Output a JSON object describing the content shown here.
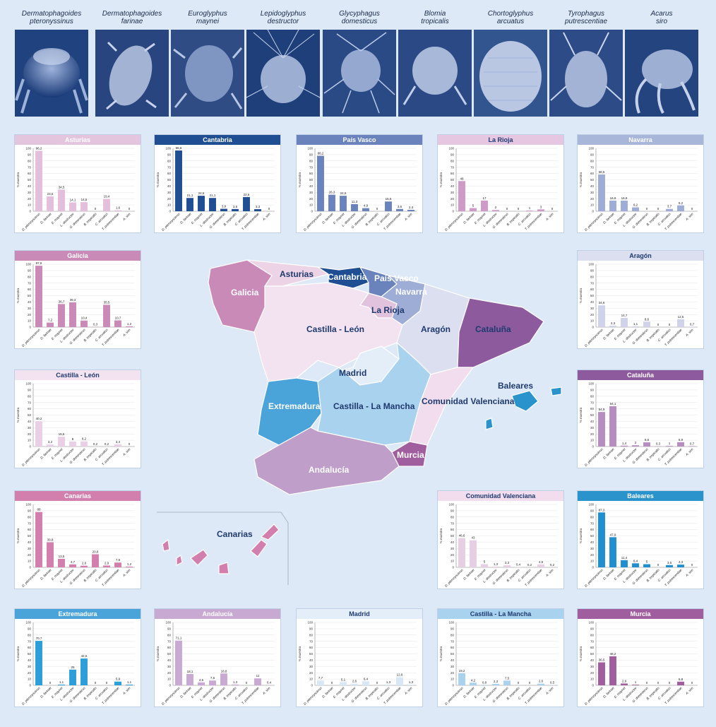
{
  "mites": [
    {
      "name": "Dermatophagoides\npteronyssinus",
      "icon": "dermatophagoides-pteronyssinus-photo"
    },
    {
      "name": "Dermatophagoides\nfarinae",
      "icon": "dermatophagoides-farinae-photo"
    },
    {
      "name": "Euroglyphus\nmaynei",
      "icon": "euroglyphus-maynei-photo"
    },
    {
      "name": "Lepidoglyphus\ndestructor",
      "icon": "lepidoglyphus-destructor-photo"
    },
    {
      "name": "Glycyphagus\ndomesticus",
      "icon": "glycyphagus-domesticus-photo"
    },
    {
      "name": "Blomia\ntropicalis",
      "icon": "blomia-tropicalis-photo"
    },
    {
      "name": "Chortoglyphus\narcuatus",
      "icon": "chortoglyphus-arcuatus-photo"
    },
    {
      "name": "Tyrophagus\nputrescentiae",
      "icon": "tyrophagus-putrescentiae-photo"
    },
    {
      "name": "Acarus\nsiro",
      "icon": "acarus-siro-photo"
    }
  ],
  "map": {
    "labels": [
      "Galicia",
      "Asturias",
      "Cantabria",
      "País\nVasco",
      "Navarra",
      "La Rioja",
      "Castilla - León",
      "Aragón",
      "Cataluña",
      "Madrid",
      "Extremadura",
      "Castilla - La Mancha",
      "Comunidad\nValenciana",
      "Baleares",
      "Andalucía",
      "Murcia",
      "Canarias"
    ],
    "colors": {
      "galicia": "#c98ab8",
      "asturias": "#ecd3e6",
      "cantabria": "#1f4e93",
      "paisvasco": "#6b83bd",
      "navarra": "#9eadd5",
      "larioja": "#e2c3de",
      "castillaleon": "#f3e3f0",
      "aragon": "#dcdff0",
      "cataluna": "#8c5a9d",
      "madrid": "#e3eef9",
      "extremadura": "#4aa3d9",
      "castillamancha": "#a9d2ee",
      "valencia": "#f1ddee",
      "baleares": "#2a93cc",
      "andalucia": "#bf9fca",
      "murcia": "#a15e9e",
      "canarias": "#d27fae"
    }
  },
  "chart_data": [
    {
      "type": "bar",
      "title": "Asturias",
      "header_color": "#e3c6de",
      "title_color": "#ffffff",
      "bar_color": "#e3bfdc",
      "ylabel": "% muestra",
      "ylim": [
        0,
        100
      ],
      "yticks": [
        0,
        10,
        20,
        30,
        40,
        50,
        60,
        70,
        80,
        90,
        100
      ],
      "categories": [
        "D. pteronyssinus",
        "D. farinae",
        "E. maynei",
        "L. destructor",
        "G. domesticus",
        "B. tropicalis",
        "C. arcuatus",
        "T. putrescentiae",
        "A. siro"
      ],
      "values": [
        96.2,
        23.6,
        34.5,
        14.1,
        14.5,
        0,
        19.4,
        1.6,
        0
      ],
      "value_labels": [
        "96,2",
        "23,6",
        "34,5",
        "14,1",
        "14,5",
        "0",
        "19,4",
        "1,6",
        "0"
      ]
    },
    {
      "type": "bar",
      "title": "Cantabria",
      "header_color": "#1f4e93",
      "title_color": "#ffffff",
      "bar_color": "#1f4e93",
      "ylabel": "% muestra",
      "ylim": [
        0,
        100
      ],
      "yticks": [
        0,
        10,
        20,
        30,
        40,
        50,
        60,
        70,
        80,
        90,
        100
      ],
      "categories": [
        "D. pteronyssinus",
        "D. farinae",
        "E. maynei",
        "L. destructor",
        "G. domesticus",
        "B. tropicalis",
        "C. arcuatus",
        "T. putrescentiae",
        "A. siro"
      ],
      "values": [
        96.6,
        21.1,
        24.6,
        21.1,
        3.9,
        3.5,
        22.6,
        3.3,
        0
      ],
      "value_labels": [
        "96,6",
        "21,1",
        "24,6",
        "21,1",
        "3,9",
        "3,5",
        "22,6",
        "3,3",
        "0"
      ]
    },
    {
      "type": "bar",
      "title": "País Vasco",
      "header_color": "#6b83bd",
      "title_color": "#ffffff",
      "bar_color": "#6b83bd",
      "ylabel": "% muestra",
      "ylim": [
        0,
        100
      ],
      "yticks": [
        0,
        10,
        20,
        30,
        40,
        50,
        60,
        70,
        80,
        90,
        100
      ],
      "categories": [
        "D. pteronyssinus",
        "D. farinae",
        "E. maynei",
        "L. destructor",
        "G. domesticus",
        "B. tropicalis",
        "C. arcuatus",
        "T. putrescentiae",
        "A. siro"
      ],
      "values": [
        88.2,
        26.3,
        24.6,
        11.3,
        4.9,
        0,
        15.5,
        3.6,
        2.3
      ],
      "value_labels": [
        "88,2",
        "26,3",
        "24,6",
        "11,3",
        "4,9",
        "0",
        "15,5",
        "3,6",
        "2,3"
      ]
    },
    {
      "type": "bar",
      "title": "La Rioja",
      "header_color": "#e6c7e2",
      "title_color": "#1e3a6e",
      "bar_color": "#cf9ac8",
      "ylabel": "% muestra",
      "ylim": [
        0,
        100
      ],
      "yticks": [
        0,
        10,
        20,
        30,
        40,
        50,
        60,
        70,
        80,
        90,
        100
      ],
      "categories": [
        "D. pteronyssinus",
        "D. farinae",
        "E. maynei",
        "L. destructor",
        "G. domesticus",
        "B. tropicalis",
        "C. arcuatus",
        "T. putrescentiae",
        "A. siro"
      ],
      "values": [
        48,
        5,
        17,
        2,
        0,
        0,
        1,
        3,
        0
      ],
      "value_labels": [
        "48",
        "5",
        "17",
        "2",
        "0",
        "0",
        "1",
        "3",
        "0"
      ]
    },
    {
      "type": "bar",
      "title": "Navarra",
      "header_color": "#a8b6da",
      "title_color": "#ffffff",
      "bar_color": "#9eadd5",
      "ylabel": "% muestra",
      "ylim": [
        0,
        100
      ],
      "yticks": [
        0,
        10,
        20,
        30,
        40,
        50,
        60,
        70,
        80,
        90,
        100
      ],
      "categories": [
        "D. pteronyssinus",
        "D. farinae",
        "E. maynei",
        "L. destructor",
        "G. domesticus",
        "B. tropicalis",
        "C. arcuatus",
        "T. putrescentiae",
        "A. siro"
      ],
      "values": [
        58.5,
        16.9,
        16.9,
        6.2,
        0,
        0,
        3.7,
        9.2,
        0
      ],
      "value_labels": [
        "58,5",
        "16,9",
        "16,9",
        "6,2",
        "0",
        "0",
        "3,7",
        "9,2",
        "0"
      ]
    },
    {
      "type": "bar",
      "title": "Galicia",
      "header_color": "#c98ab8",
      "title_color": "#ffffff",
      "bar_color": "#c98ab8",
      "ylabel": "% muestra",
      "ylim": [
        0,
        100
      ],
      "yticks": [
        0,
        10,
        20,
        30,
        40,
        50,
        60,
        70,
        80,
        90,
        100
      ],
      "categories": [
        "D. pteronyssinus",
        "D. farinae",
        "E. maynei",
        "L. destructor",
        "G. domesticus",
        "B. tropicalis",
        "C. arcuatus",
        "T. putrescentiae",
        "A. siro"
      ],
      "values": [
        97.6,
        7.2,
        36.7,
        39.3,
        10.4,
        0.3,
        35.5,
        10.7,
        1.2
      ],
      "value_labels": [
        "97,6",
        "7,2",
        "36,7",
        "39,3",
        "10,4",
        "0,3",
        "35,5",
        "10,7",
        "1,2"
      ]
    },
    {
      "type": "bar",
      "title": "Aragón",
      "header_color": "#dcdff0",
      "title_color": "#1e3a6e",
      "bar_color": "#cfd3ea",
      "ylabel": "% muestra",
      "ylim": [
        0,
        100
      ],
      "yticks": [
        0,
        10,
        20,
        30,
        40,
        50,
        60,
        70,
        80,
        90,
        100
      ],
      "categories": [
        "D. pteronyssinus",
        "D. farinae",
        "E. maynei",
        "L. destructor",
        "G. domesticus",
        "B. tropicalis",
        "C. arcuatus",
        "T. putrescentiae",
        "A. siro"
      ],
      "values": [
        34.6,
        2.3,
        14.7,
        1.1,
        8.6,
        0,
        0,
        12.5,
        0.7
      ],
      "value_labels": [
        "34,6",
        "2,3",
        "14,7",
        "1,1",
        "8,6",
        "0",
        "0",
        "12,5",
        "0,7"
      ]
    },
    {
      "type": "bar",
      "title": "Castilla - León",
      "header_color": "#f3e3f0",
      "title_color": "#1e3a6e",
      "bar_color": "#e9d0e6",
      "ylabel": "% muestra",
      "ylim": [
        0,
        100
      ],
      "yticks": [
        0,
        10,
        20,
        30,
        40,
        50,
        60,
        70,
        80,
        90,
        100
      ],
      "categories": [
        "D. pteronyssinus",
        "D. farinae",
        "E. maynei",
        "L. destructor",
        "G. domesticus",
        "B. tropicalis",
        "C. arcuatus",
        "T. putrescentiae",
        "A. siro"
      ],
      "values": [
        40.2,
        3.2,
        15.6,
        8,
        8.2,
        0.2,
        0.2,
        3.4,
        0
      ],
      "value_labels": [
        "40,2",
        "3,2",
        "15,6",
        "8",
        "8,2",
        "0,2",
        "0,2",
        "3,4",
        "0"
      ]
    },
    {
      "type": "bar",
      "title": "Cataluña",
      "header_color": "#8c5a9d",
      "title_color": "#ffffff",
      "bar_color": "#b78cc0",
      "ylabel": "% muestra",
      "ylim": [
        0,
        100
      ],
      "yticks": [
        0,
        10,
        20,
        30,
        40,
        50,
        60,
        70,
        80,
        90,
        100
      ],
      "categories": [
        "D. pteronyssinus",
        "D. farinae",
        "E. maynei",
        "L. destructor",
        "G. domesticus",
        "B. tropicalis",
        "C. arcuatus",
        "T. putrescentiae",
        "A. siro"
      ],
      "values": [
        54.9,
        64.1,
        1.4,
        2,
        6.6,
        0.3,
        1,
        6.9,
        0.7
      ],
      "value_labels": [
        "54,9",
        "64,1",
        "1,4",
        "2",
        "6,6",
        "0,3",
        "1",
        "6,9",
        "0,7"
      ]
    },
    {
      "type": "bar",
      "title": "Canarias",
      "header_color": "#d27fae",
      "title_color": "#ffffff",
      "bar_color": "#d27fae",
      "ylabel": "% muestra",
      "ylim": [
        0,
        100
      ],
      "yticks": [
        0,
        10,
        20,
        30,
        40,
        50,
        60,
        70,
        80,
        90,
        100
      ],
      "categories": [
        "D. pteronyssinus",
        "D. farinae",
        "E. maynei",
        "L. destructor",
        "G. domesticus",
        "B. tropicalis",
        "C. arcuatus",
        "T. putrescentiae",
        "A. siro"
      ],
      "values": [
        88,
        39.8,
        13.5,
        4.7,
        2.6,
        20.8,
        2.9,
        7.6,
        1.2
      ],
      "value_labels": [
        "88",
        "39,8",
        "13,5",
        "4,7",
        "2,6",
        "20,8",
        "2,9",
        "7,6",
        "1,2"
      ]
    },
    {
      "type": "bar",
      "title": "Comunidad Valenciana",
      "header_color": "#f1ddee",
      "title_color": "#1e3a6e",
      "bar_color": "#e7cfe3",
      "ylabel": "% muestra",
      "ylim": [
        0,
        100
      ],
      "yticks": [
        0,
        10,
        20,
        30,
        40,
        50,
        60,
        70,
        80,
        90,
        100
      ],
      "categories": [
        "D. pteronyssinus",
        "D. farinae",
        "E. maynei",
        "L. destructor",
        "G. domesticus",
        "B. tropicalis",
        "C. arcuatus",
        "T. putrescentiae",
        "A. siro"
      ],
      "values": [
        46.6,
        43,
        5,
        1.3,
        3.3,
        0.4,
        0.2,
        4.6,
        0.2
      ],
      "value_labels": [
        "46,6",
        "43",
        "5",
        "1,3",
        "3,3",
        "0,4",
        "0,2",
        "4,6",
        "0,2"
      ]
    },
    {
      "type": "bar",
      "title": "Baleares",
      "header_color": "#2a93cc",
      "title_color": "#ffffff",
      "bar_color": "#1f8fcf",
      "ylabel": "% muestra",
      "ylim": [
        0,
        100
      ],
      "yticks": [
        0,
        10,
        20,
        30,
        40,
        50,
        60,
        70,
        80,
        90,
        100
      ],
      "categories": [
        "D. pteronyssinus",
        "D. farinae",
        "E. maynei",
        "L. destructor",
        "G. domesticus",
        "B. tropicalis",
        "C. arcuatus",
        "T. putrescentiae",
        "A. siro"
      ],
      "values": [
        87.3,
        47.9,
        11.4,
        6.4,
        5,
        0,
        3.6,
        4.3,
        0
      ],
      "value_labels": [
        "87,3",
        "47,9",
        "11,4",
        "6,4",
        "5",
        "0",
        "3,6",
        "4,3",
        "0"
      ]
    },
    {
      "type": "bar",
      "title": "Extremadura",
      "header_color": "#4aa3d9",
      "title_color": "#ffffff",
      "bar_color": "#2a9fd8",
      "ylabel": "% muestra",
      "ylim": [
        0,
        100
      ],
      "yticks": [
        0,
        10,
        20,
        30,
        40,
        50,
        60,
        70,
        80,
        90,
        100
      ],
      "categories": [
        "D. pteronyssinus",
        "D. farinae",
        "E. maynei",
        "L. destructor",
        "G. domesticus",
        "B. tropicalis",
        "C. arcuatus",
        "T. putrescentiae",
        "A. siro"
      ],
      "values": [
        70.7,
        0,
        1.1,
        25,
        42.6,
        0,
        0,
        5.9,
        1.1
      ],
      "value_labels": [
        "70,7",
        "0",
        "1,1",
        "25",
        "42,6",
        "0",
        "0",
        "5,9",
        "1,1"
      ]
    },
    {
      "type": "bar",
      "title": "Andalucía",
      "header_color": "#c8a9d2",
      "title_color": "#ffffff",
      "bar_color": "#c8a9d2",
      "ylabel": "% muestra",
      "ylim": [
        0,
        100
      ],
      "yticks": [
        0,
        10,
        20,
        30,
        40,
        50,
        60,
        70,
        80,
        90,
        100
      ],
      "categories": [
        "D. pteronyssinus",
        "D. farinae",
        "E. maynei",
        "L. destructor",
        "G. domesticus",
        "B. tropicalis",
        "C. arcuatus",
        "T. putrescentiae",
        "A. siro"
      ],
      "values": [
        71.1,
        18.1,
        4.6,
        7.6,
        18.8,
        1.3,
        0,
        11,
        0.4
      ],
      "value_labels": [
        "71,1",
        "18,1",
        "4,6",
        "7,6",
        "18,8",
        "1,3",
        "0",
        "11",
        "0,4"
      ]
    },
    {
      "type": "bar",
      "title": "Madrid",
      "header_color": "#e3eef9",
      "title_color": "#1e3a6e",
      "bar_color": "#d7e7f6",
      "ylabel": "% muestra",
      "ylim": [
        0,
        100
      ],
      "yticks": [
        0,
        10,
        20,
        30,
        40,
        50,
        60,
        70,
        80,
        90,
        100
      ],
      "categories": [
        "D. pteronyssinus",
        "D. farinae",
        "E. maynei",
        "L. destructor",
        "G. domesticus",
        "B. tropicalis",
        "C. arcuatus",
        "T. putrescentiae",
        "A. siro"
      ],
      "values": [
        7.7,
        0,
        5.1,
        2.6,
        6.4,
        0,
        1.3,
        12.8,
        1.3
      ],
      "value_labels": [
        "7,7",
        "0",
        "5,1",
        "2,6",
        "6,4",
        "0",
        "1,3",
        "12,8",
        "1,3"
      ]
    },
    {
      "type": "bar",
      "title": "Castilla - La Mancha",
      "header_color": "#a9d2ee",
      "title_color": "#1e3a6e",
      "bar_color": "#a9d2ee",
      "ylabel": "% muestra",
      "ylim": [
        0,
        100
      ],
      "yticks": [
        0,
        10,
        20,
        30,
        40,
        50,
        60,
        70,
        80,
        90,
        100
      ],
      "categories": [
        "D. pteronyssinus",
        "D. farinae",
        "E. maynei",
        "L. destructor",
        "G. domesticus",
        "B. tropicalis",
        "C. arcuatus",
        "T. putrescentiae",
        "A. siro"
      ],
      "values": [
        19.2,
        4.2,
        0.8,
        2.3,
        7.5,
        0,
        0,
        2.6,
        0.5
      ],
      "value_labels": [
        "19,2",
        "4,2",
        "0,8",
        "2,3",
        "7,5",
        "0",
        "0",
        "2,6",
        "0,5"
      ]
    },
    {
      "type": "bar",
      "title": "Murcia",
      "header_color": "#a15e9e",
      "title_color": "#ffffff",
      "bar_color": "#a15e9e",
      "ylabel": "% muestra",
      "ylim": [
        0,
        100
      ],
      "yticks": [
        0,
        10,
        20,
        30,
        40,
        50,
        60,
        70,
        80,
        90,
        100
      ],
      "categories": [
        "D. pteronyssinus",
        "D. farinae",
        "E. maynei",
        "L. destructor",
        "G. domesticus",
        "B. tropicalis",
        "C. arcuatus",
        "T. putrescentiae",
        "A. siro"
      ],
      "values": [
        36.5,
        46.2,
        2.9,
        1,
        0,
        0,
        0,
        5.8,
        0
      ],
      "value_labels": [
        "36,5",
        "46,2",
        "2,9",
        "1",
        "0",
        "0",
        "0",
        "5,8",
        "0"
      ]
    }
  ]
}
